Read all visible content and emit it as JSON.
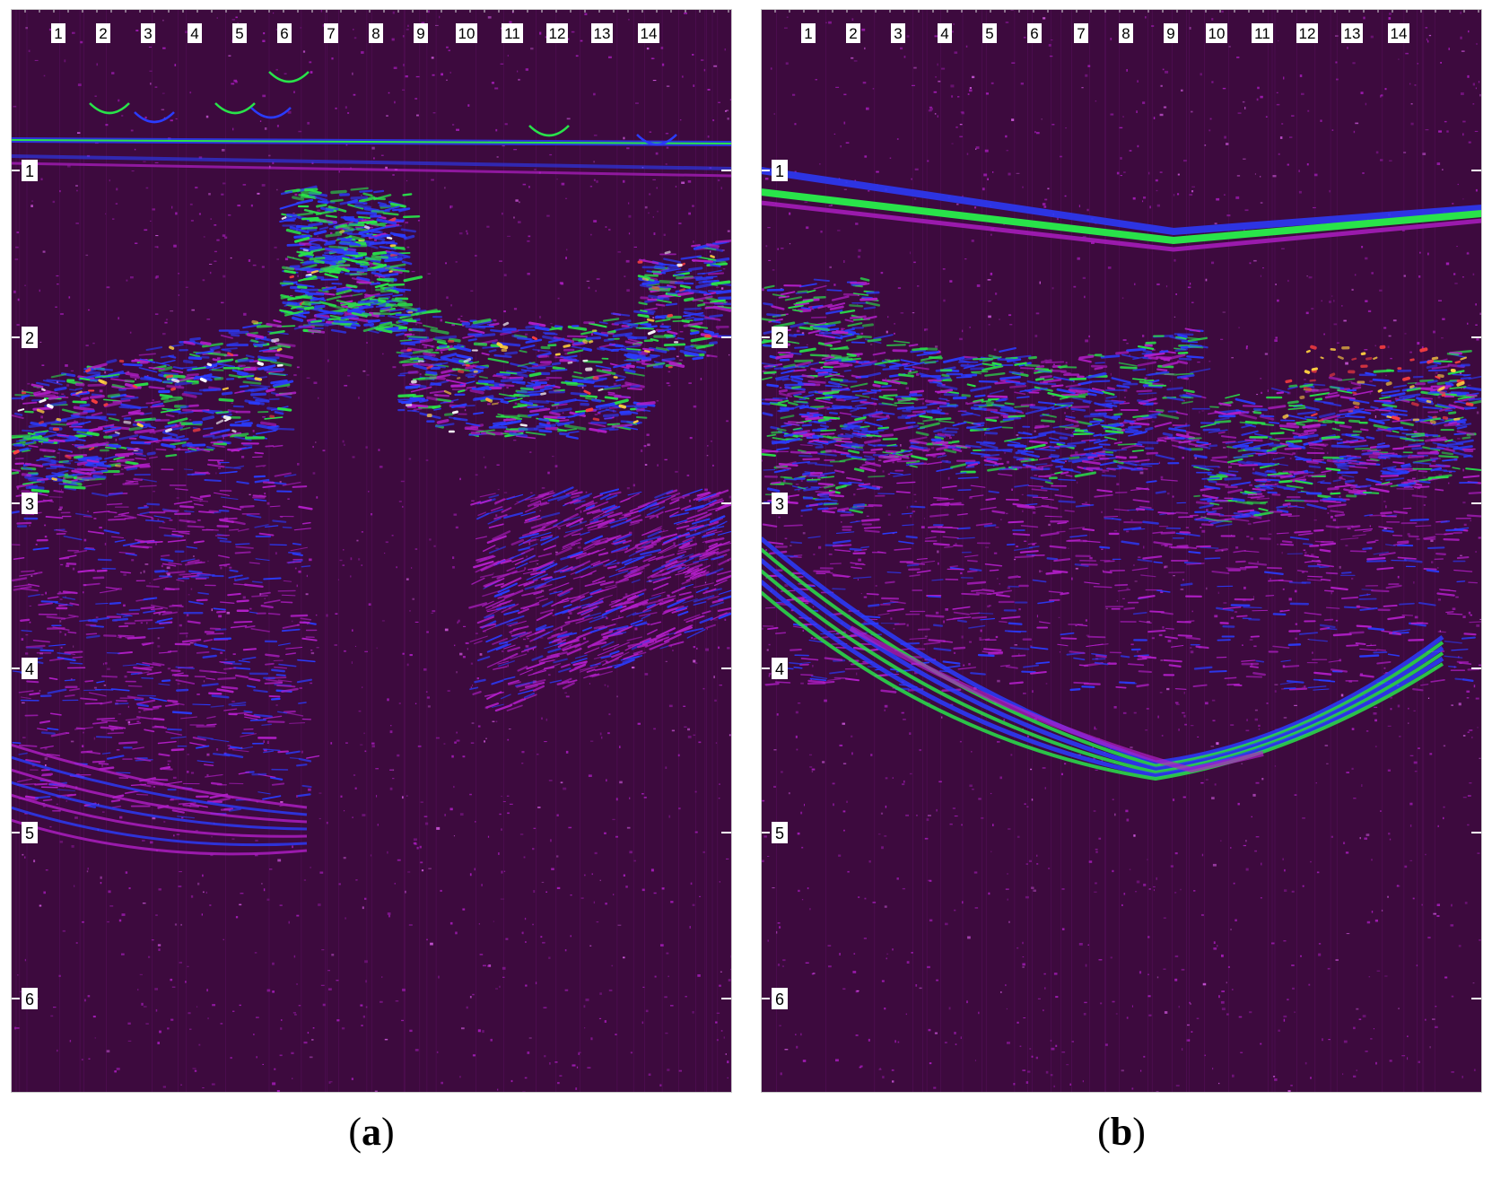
{
  "panels": [
    {
      "id": "a",
      "caption_letter": "a",
      "top_marks": [
        "1",
        "2",
        "3",
        "4",
        "5",
        "6",
        "7",
        "8",
        "9",
        "10",
        "11",
        "12",
        "13",
        "14"
      ],
      "depth_marks": [
        "1",
        "2",
        "3",
        "4",
        "5",
        "6"
      ]
    },
    {
      "id": "b",
      "caption_letter": "b",
      "top_marks": [
        "1",
        "2",
        "3",
        "4",
        "5",
        "6",
        "7",
        "8",
        "9",
        "10",
        "11",
        "12",
        "13",
        "14"
      ],
      "depth_marks": [
        "1",
        "2",
        "3",
        "4",
        "5",
        "6"
      ]
    }
  ],
  "colors": {
    "background": "#3d0a3e",
    "noise": "#b21ec8",
    "reflector_blue": "#2a3cff",
    "reflector_green": "#29e34a",
    "hot_spot": "#ffd040"
  }
}
